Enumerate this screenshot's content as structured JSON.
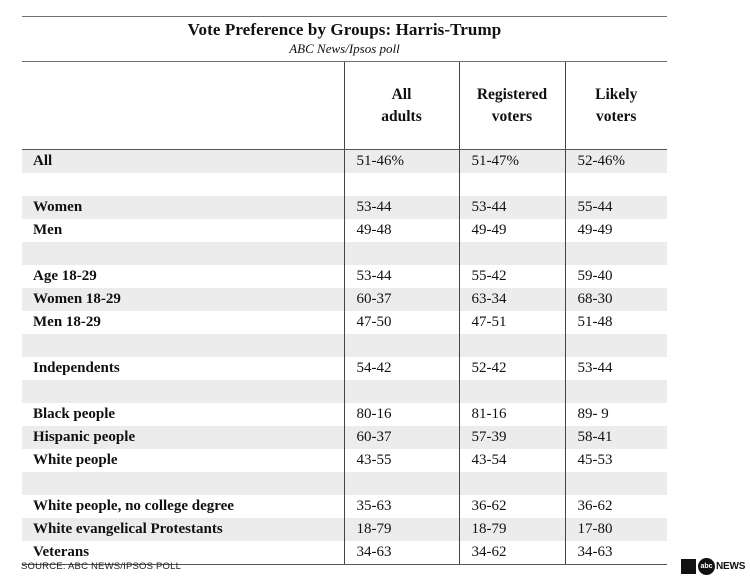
{
  "title": "Vote Preference by Groups: Harris-Trump",
  "subtitle": "ABC News/Ipsos poll",
  "columns": [
    "All\nadults",
    "Registered\nvoters",
    "Likely\nvoters"
  ],
  "rows": [
    {
      "label": "All",
      "values": [
        "51-46%",
        "51-47%",
        "52-46%"
      ]
    },
    {
      "label": "",
      "values": [
        "",
        "",
        ""
      ]
    },
    {
      "label": "Women",
      "values": [
        "53-44",
        "53-44",
        "55-44"
      ]
    },
    {
      "label": "Men",
      "values": [
        "49-48",
        "49-49",
        "49-49"
      ]
    },
    {
      "label": "",
      "values": [
        "",
        "",
        ""
      ]
    },
    {
      "label": "Age 18-29",
      "values": [
        "53-44",
        "55-42",
        "59-40"
      ]
    },
    {
      "label": "Women 18-29",
      "values": [
        "60-37",
        "63-34",
        "68-30"
      ]
    },
    {
      "label": "Men 18-29",
      "values": [
        "47-50",
        "47-51",
        "51-48"
      ]
    },
    {
      "label": "",
      "values": [
        "",
        "",
        ""
      ]
    },
    {
      "label": "Independents",
      "values": [
        "54-42",
        "52-42",
        "53-44"
      ]
    },
    {
      "label": "",
      "values": [
        "",
        "",
        ""
      ]
    },
    {
      "label": "Black people",
      "values": [
        "80-16",
        "81-16",
        "89- 9"
      ]
    },
    {
      "label": "Hispanic people",
      "values": [
        "60-37",
        "57-39",
        "58-41"
      ]
    },
    {
      "label": "White people",
      "values": [
        "43-55",
        "43-54",
        "45-53"
      ]
    },
    {
      "label": "",
      "values": [
        "",
        "",
        ""
      ]
    },
    {
      "label": "White people, no college degree",
      "values": [
        "35-63",
        "36-62",
        "36-62"
      ]
    },
    {
      "label": "White evangelical Protestants",
      "values": [
        "18-79",
        "18-79",
        "17-80"
      ]
    },
    {
      "label": "Veterans",
      "values": [
        "34-63",
        "34-62",
        "34-63"
      ]
    }
  ],
  "source": "SOURCE: ABC NEWS/IPSOS POLL",
  "logo": {
    "badge": "abc",
    "text": "NEWS"
  }
}
